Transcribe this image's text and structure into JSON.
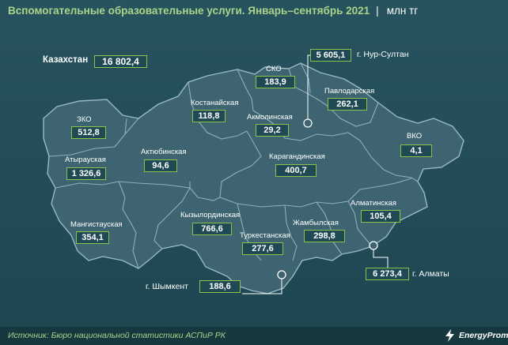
{
  "header": {
    "title": "Вспомогательные образовательные услуги. Январь–сентябрь 2021",
    "separator": "|",
    "unit": "млн тг"
  },
  "kazakhstan": {
    "label": "Казахстан",
    "value": "16 802,4"
  },
  "regions": [
    {
      "id": "zko",
      "label": "ЗКО",
      "value": "512,8"
    },
    {
      "id": "atyrau",
      "label": "Атырауская",
      "value": "1 326,6"
    },
    {
      "id": "mangistau",
      "label": "Мангистауская",
      "value": "354,1"
    },
    {
      "id": "aktobe",
      "label": "Актюбинская",
      "value": "94,6"
    },
    {
      "id": "kostanay",
      "label": "Костанайская",
      "value": "118,8"
    },
    {
      "id": "sko",
      "label": "СКО",
      "value": "183,9"
    },
    {
      "id": "akmola",
      "label": "Акмолинская",
      "value": "29,2"
    },
    {
      "id": "pavlodar",
      "label": "Павлодарская",
      "value": "262,1"
    },
    {
      "id": "vko",
      "label": "ВКО",
      "value": "4,1"
    },
    {
      "id": "karaganda",
      "label": "Карагандинская",
      "value": "400,7"
    },
    {
      "id": "kyzylorda",
      "label": "Кызылординская",
      "value": "766,6"
    },
    {
      "id": "turkestan",
      "label": "Туркестанская",
      "value": "277,6"
    },
    {
      "id": "zhambyl",
      "label": "Жамбылская",
      "value": "298,8"
    },
    {
      "id": "almaty_obl",
      "label": "Алматинская",
      "value": "105,4"
    }
  ],
  "cities": [
    {
      "id": "nur_sultan",
      "label": "г. Нур-Султан",
      "value": "5 605,1"
    },
    {
      "id": "shymkent",
      "label": "г. Шымкент",
      "value": "188,6"
    },
    {
      "id": "almaty",
      "label": "г. Алматы",
      "value": "6 273,4"
    }
  ],
  "footer": {
    "source": "Источник: Бюро национальной статистики АСПиР РК",
    "brand": "EnergyProm"
  },
  "colors": {
    "background": "#1f4a55",
    "land": "#3d6470",
    "border": "#8fb0b8",
    "accent": "#8bc34a",
    "title": "#a9d48a"
  }
}
